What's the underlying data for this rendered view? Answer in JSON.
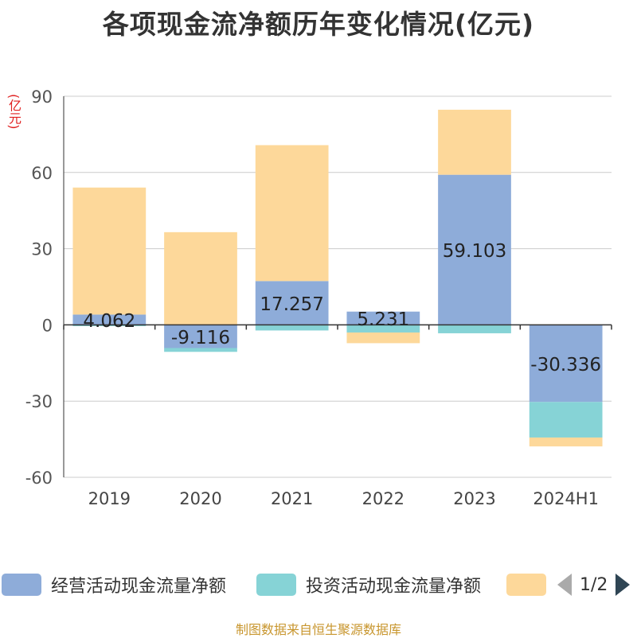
{
  "chart_data": {
    "type": "bar",
    "stacked": true,
    "title": "各项现金流净额历年变化情况(亿元)",
    "y_unit": "(亿元)",
    "categories": [
      "2019",
      "2020",
      "2021",
      "2022",
      "2023",
      "2024H1"
    ],
    "ylim": [
      -60,
      90
    ],
    "yticks": [
      -60,
      -30,
      0,
      30,
      60,
      90
    ],
    "ytick_labels": [
      "-60",
      "-30",
      "0",
      "30",
      "60",
      "90"
    ],
    "grid": true,
    "legend_position": "bottom",
    "series": [
      {
        "name": "经营活动现金流量净额",
        "color": "#8eacd9",
        "values": [
          4.062,
          -9.116,
          17.257,
          5.231,
          59.103,
          -30.336
        ],
        "labels": [
          "4.062",
          "-9.116",
          "17.257",
          "5.231",
          "59.103",
          "-30.336"
        ]
      },
      {
        "name": "投资活动现金流量净额",
        "color": "#86d3d6",
        "values": [
          -0.5,
          -1.5,
          -2.2,
          -3.0,
          -3.3,
          -14.0
        ]
      },
      {
        "name": "",
        "color": "#fdd89a",
        "values": [
          50.0,
          36.5,
          53.5,
          -4.2,
          25.6,
          -3.5
        ]
      }
    ]
  },
  "legend": {
    "page_text": "1/2"
  },
  "source_text": "制图数据来自恒生聚源数据库"
}
